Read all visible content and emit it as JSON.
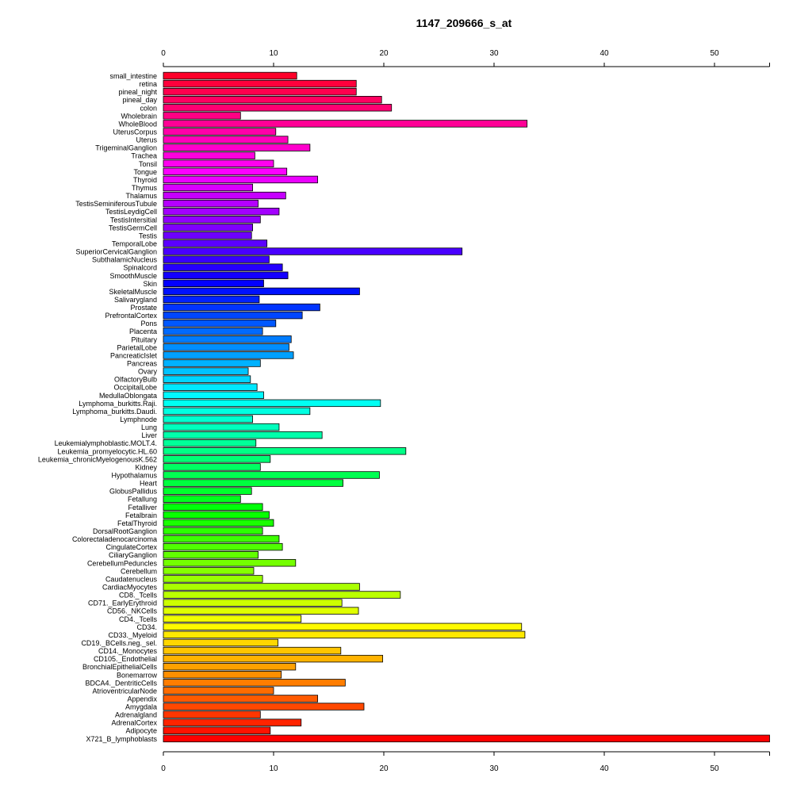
{
  "chart_data": {
    "type": "bar",
    "orientation": "horizontal",
    "title": "1147_209666_s_at",
    "xlabel": "",
    "ylabel": "",
    "xlim": [
      0,
      55
    ],
    "x_ticks": [
      0,
      10,
      20,
      30,
      40,
      50
    ],
    "grid": false,
    "categories": [
      "small_intestine",
      "retina",
      "pineal_night",
      "pineal_day",
      "colon",
      "Wholebrain",
      "WholeBlood",
      "UterusCorpus",
      "Uterus",
      "TrigeminalGanglion",
      "Trachea",
      "Tonsil",
      "Tongue",
      "Thyroid",
      "Thymus",
      "Thalamus",
      "TestisSeminiferousTubule",
      "TestisLeydigCell",
      "TestisIntersitial",
      "TestisGermCell",
      "Testis",
      "TemporalLobe",
      "SuperiorCervicalGanglion",
      "SubthalamicNucleus",
      "Spinalcord",
      "SmoothMuscle",
      "Skin",
      "SkeletalMuscle",
      "Salivarygland",
      "Prostate",
      "PrefrontalCortex",
      "Pons",
      "Placenta",
      "Pituitary",
      "ParietalLobe",
      "PancreaticIslet",
      "Pancreas",
      "Ovary",
      "OlfactoryBulb",
      "OccipitalLobe",
      "MedullaOblongata",
      "Lymphoma_burkitts.Raji.",
      "Lymphoma_burkitts.Daudi.",
      "Lymphnode",
      "Lung",
      "Liver",
      "Leukemialymphoblastic.MOLT.4.",
      "Leukemia_promyelocytic.HL.60",
      "Leukemia_chronicMyelogenousK.562",
      "Kidney",
      "Hypothalamus",
      "Heart",
      "GlobusPallidus",
      "Fetallung",
      "Fetalliver",
      "Fetalbrain",
      "FetalThyroid",
      "DorsalRootGanglion",
      "Colorectaladenocarcinoma",
      "CingulateCortex",
      "CiliaryGanglion",
      "CerebellumPeduncles",
      "Cerebellum",
      "Caudatenucleus",
      "CardiacMyocytes",
      "CD8._Tcells",
      "CD71._EarlyErythroid",
      "CD56._NKCells",
      "CD4._Tcells",
      "CD34.",
      "CD33._Myeloid",
      "CD19._BCells.neg._sel.",
      "CD14._Monocytes",
      "CD105._Endothelial",
      "BronchialEpithelialCells",
      "Bonemarrow",
      "BDCA4._DentriticCells",
      "AtrioventricularNode",
      "Appendix",
      "Amygdala",
      "Adrenalgland",
      "AdrenalCortex",
      "Adipocyte",
      "X721_B_lymphoblasts"
    ],
    "values": [
      12.1,
      17.5,
      17.5,
      19.8,
      20.7,
      7.0,
      33.0,
      10.2,
      11.3,
      13.3,
      8.3,
      10.0,
      11.2,
      14.0,
      8.1,
      11.1,
      8.6,
      10.5,
      8.8,
      8.1,
      8.0,
      9.4,
      27.1,
      9.6,
      10.8,
      11.3,
      9.1,
      17.8,
      8.7,
      14.2,
      12.6,
      10.2,
      9.0,
      11.6,
      11.4,
      11.8,
      8.8,
      7.7,
      7.9,
      8.5,
      9.1,
      19.7,
      13.3,
      8.1,
      10.5,
      14.4,
      8.4,
      22.0,
      9.7,
      8.8,
      19.6,
      16.3,
      8.0,
      7.0,
      9.0,
      9.6,
      10.0,
      9.0,
      10.5,
      10.8,
      8.6,
      12.0,
      8.2,
      9.0,
      17.8,
      21.5,
      16.2,
      17.7,
      12.5,
      32.5,
      32.8,
      10.4,
      16.1,
      19.9,
      12.0,
      10.7,
      16.5,
      10.0,
      14.0,
      18.2,
      8.8,
      12.5,
      9.7,
      55.0
    ]
  }
}
